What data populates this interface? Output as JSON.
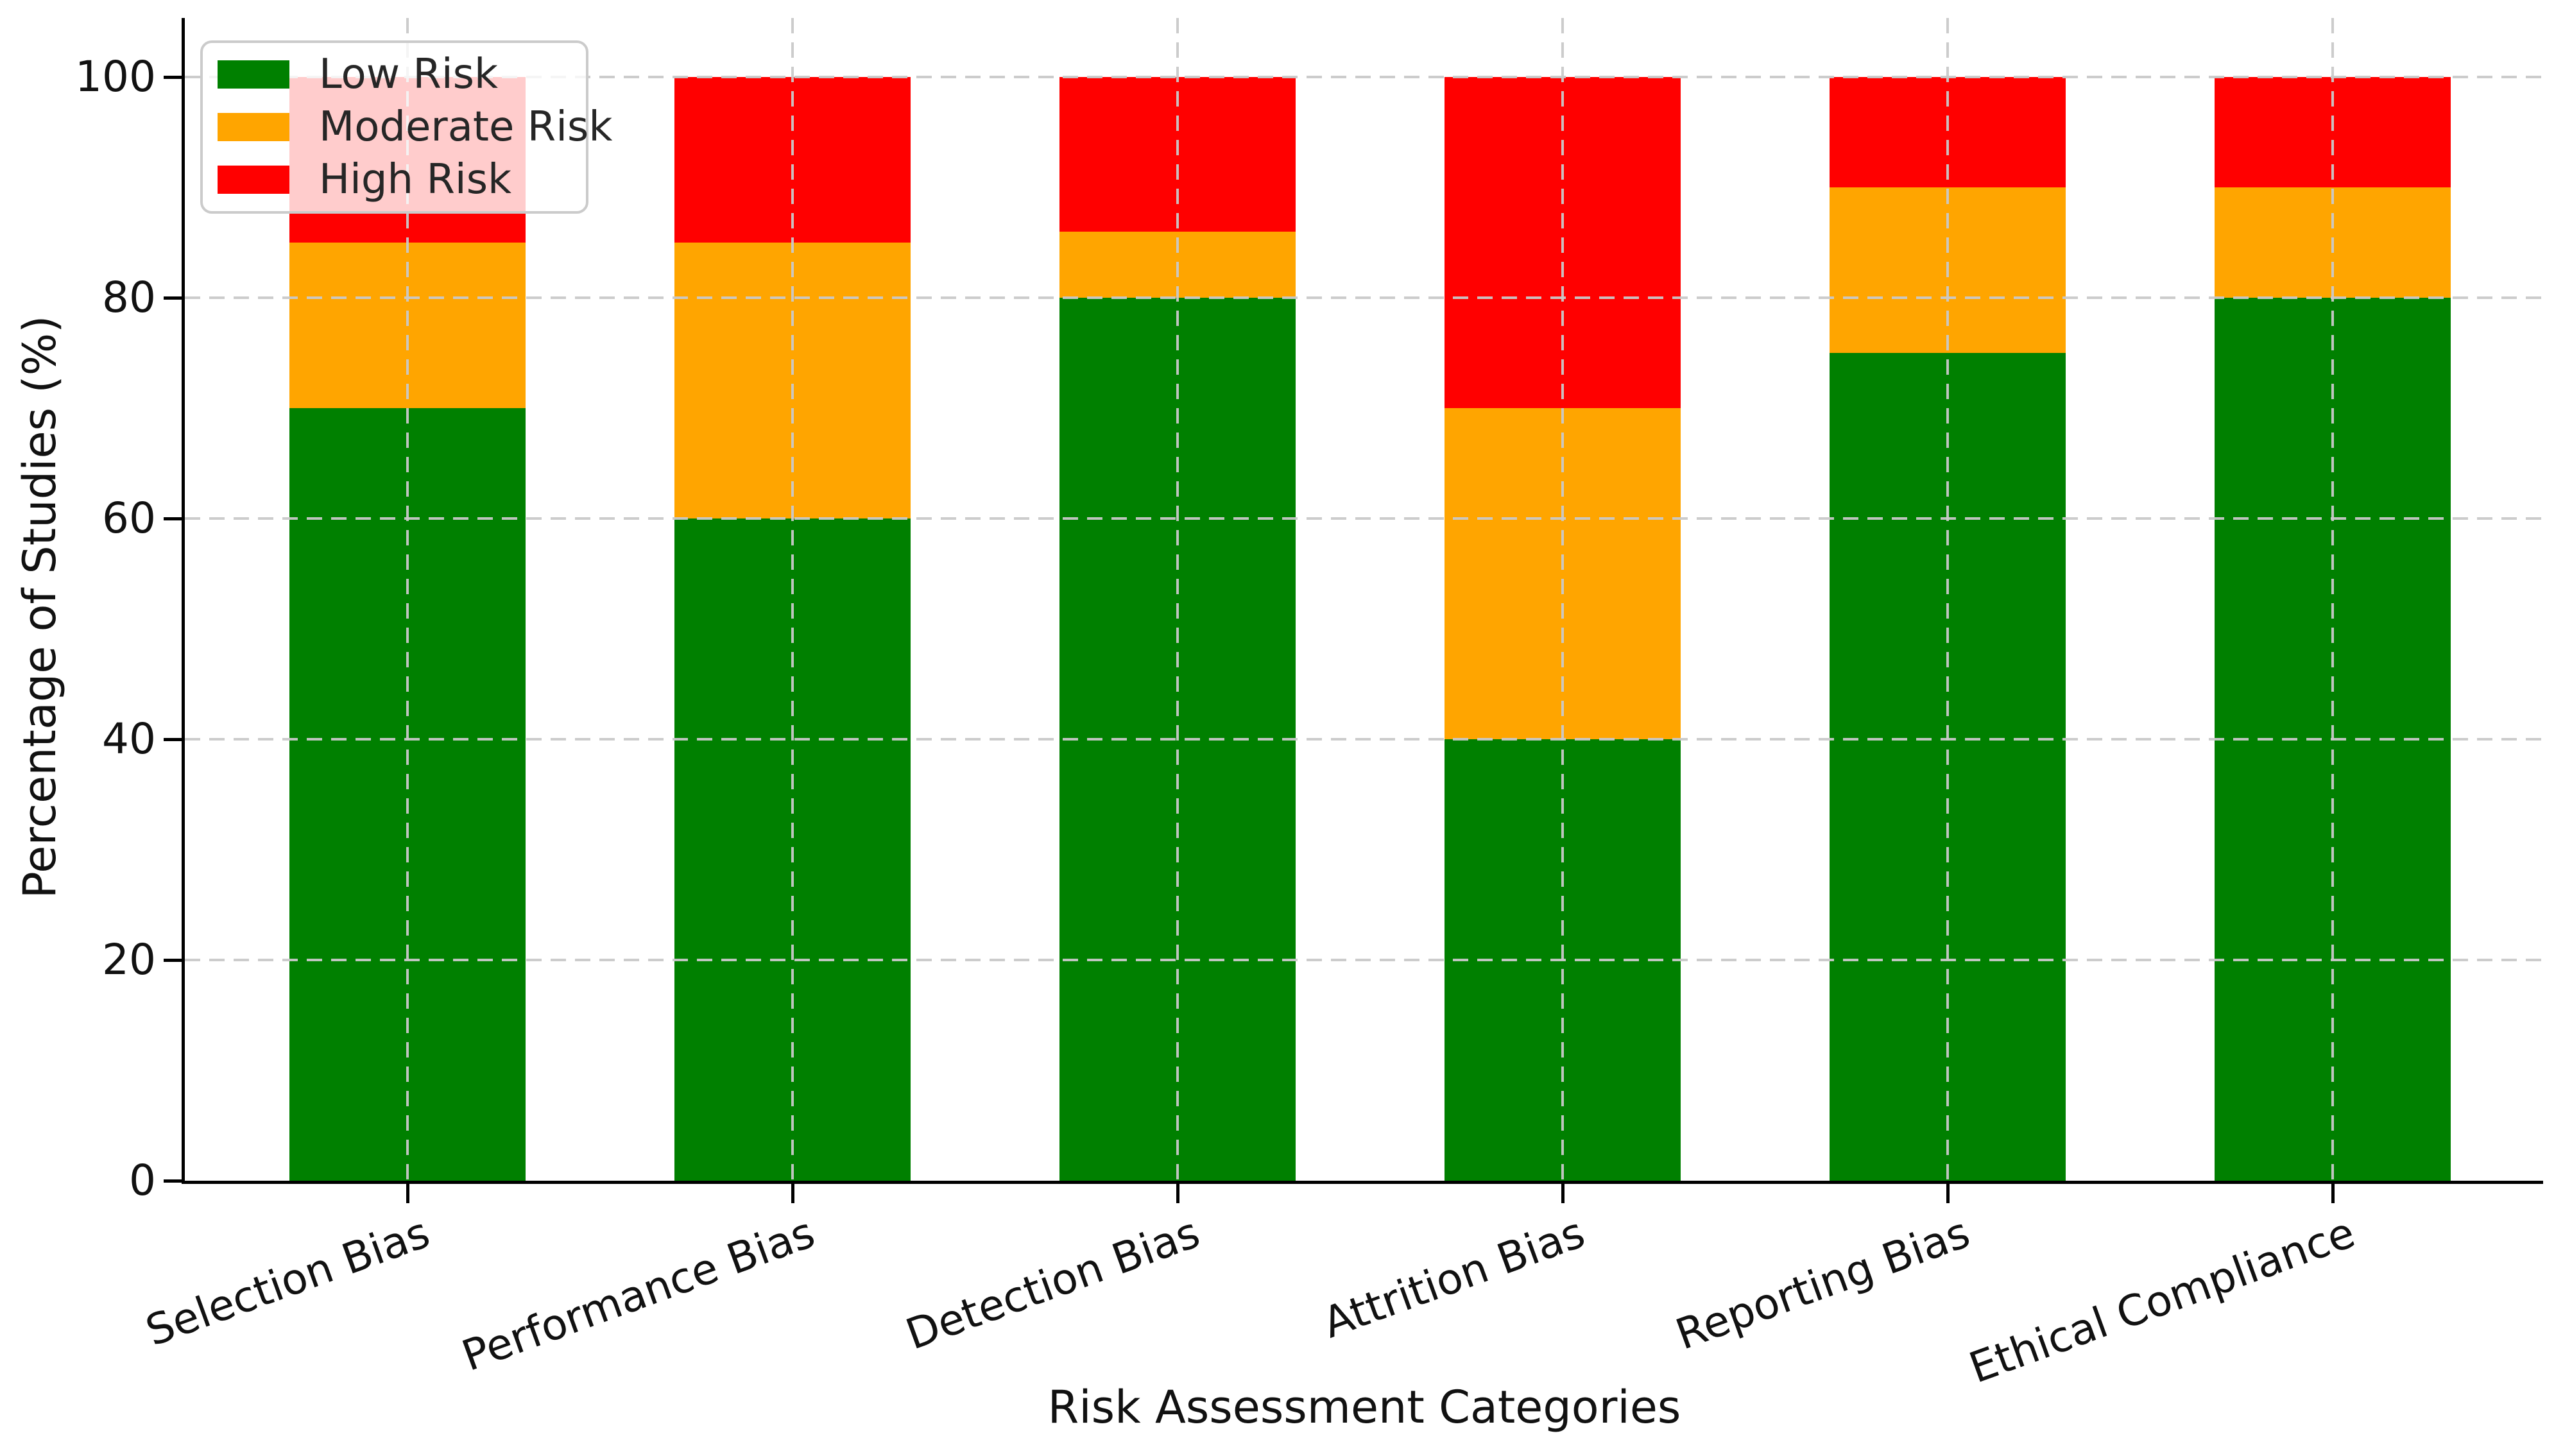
{
  "chart_data": {
    "type": "bar",
    "stacked": true,
    "title": "",
    "xlabel": "Risk Assessment Categories",
    "ylabel": "Percentage of Studies (%)",
    "categories": [
      "Selection Bias",
      "Performance Bias",
      "Detection Bias",
      "Attrition Bias",
      "Reporting Bias",
      "Ethical Compliance"
    ],
    "series": [
      {
        "name": "Low Risk",
        "color": "#008000",
        "values": [
          70,
          60,
          80,
          40,
          75,
          80
        ]
      },
      {
        "name": "Moderate Risk",
        "color": "#FFA500",
        "values": [
          15,
          25,
          6,
          30,
          15,
          10
        ]
      },
      {
        "name": "High Risk",
        "color": "#FF0000",
        "values": [
          15,
          15,
          14,
          30,
          10,
          10
        ]
      }
    ],
    "yticks": [
      0,
      20,
      40,
      60,
      80,
      100
    ],
    "ylim": [
      0,
      105.35
    ],
    "ylabel_axis_range_note": "",
    "legend_position": "upper left",
    "grid": true
  }
}
